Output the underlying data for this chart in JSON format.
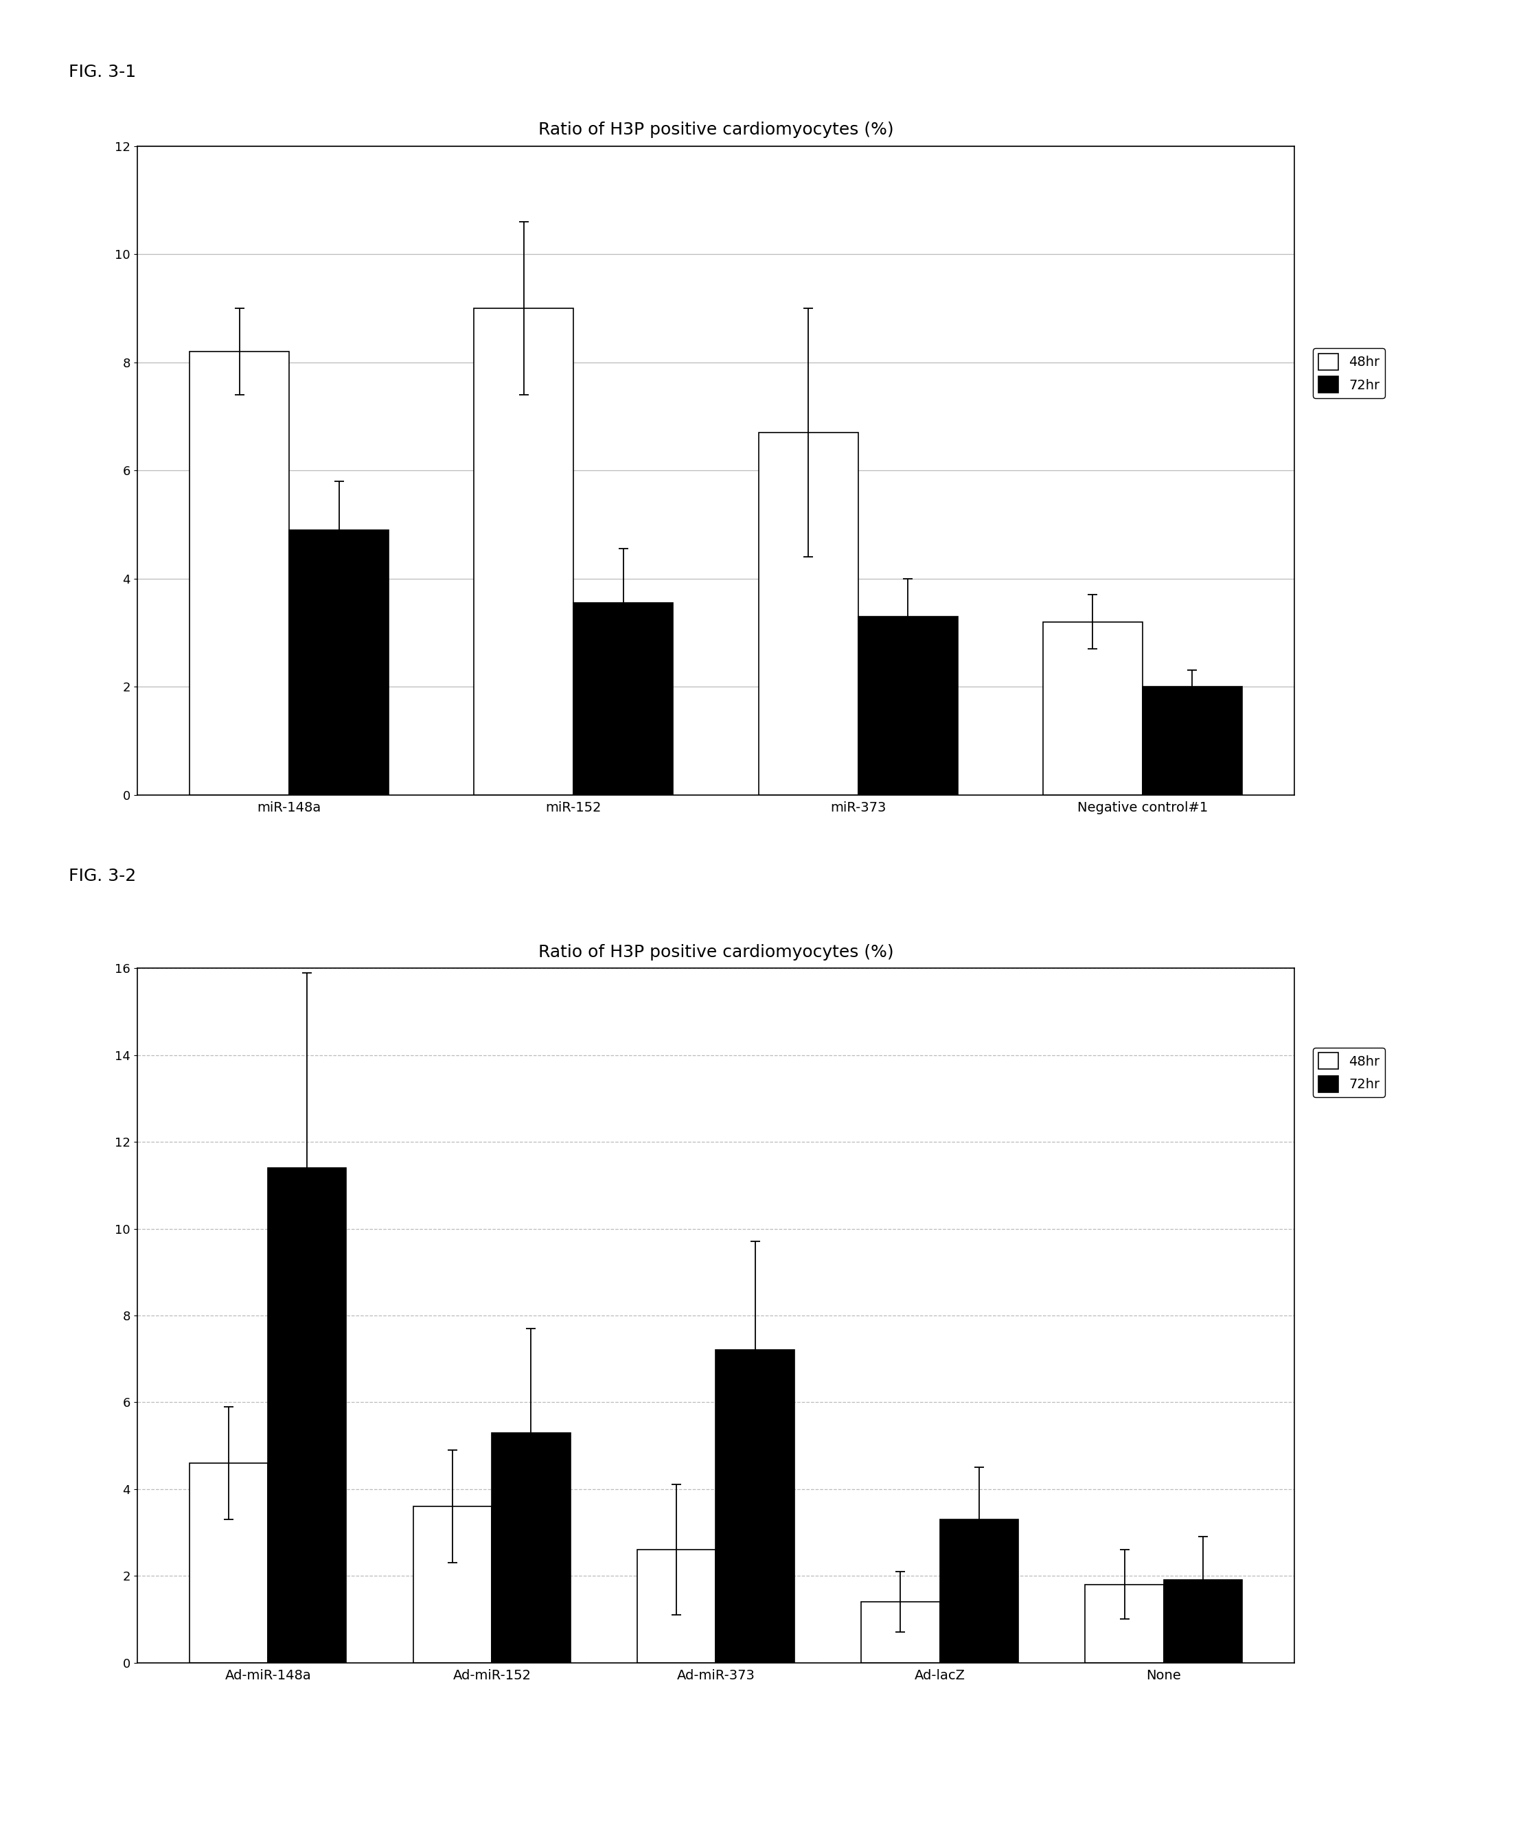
{
  "fig1": {
    "title": "Ratio of H3P positive cardiomyocytes (%)",
    "label": "FIG. 3-1",
    "categories": [
      "miR-148a",
      "miR-152",
      "miR-373",
      "Negative control#1"
    ],
    "values_48hr": [
      8.2,
      9.0,
      6.7,
      3.2
    ],
    "values_72hr": [
      4.9,
      3.55,
      3.3,
      2.0
    ],
    "err_48hr": [
      0.8,
      1.6,
      2.3,
      0.5
    ],
    "err_72hr": [
      0.9,
      1.0,
      0.7,
      0.3
    ],
    "ylim": [
      0,
      12
    ],
    "yticks": [
      0,
      2,
      4,
      6,
      8,
      10,
      12
    ],
    "grid_style": "solid"
  },
  "fig2": {
    "title": "Ratio of H3P positive cardiomyocytes (%)",
    "label": "FIG. 3-2",
    "categories": [
      "Ad-miR-148a",
      "Ad-miR-152",
      "Ad-miR-373",
      "Ad-lacZ",
      "None"
    ],
    "values_48hr": [
      4.6,
      3.6,
      2.6,
      1.4,
      1.8
    ],
    "values_72hr": [
      11.4,
      5.3,
      7.2,
      3.3,
      1.9
    ],
    "err_48hr": [
      1.3,
      1.3,
      1.5,
      0.7,
      0.8
    ],
    "err_72hr": [
      4.5,
      2.4,
      2.5,
      1.2,
      1.0
    ],
    "ylim": [
      0,
      16
    ],
    "yticks": [
      0,
      2,
      4,
      6,
      8,
      10,
      12,
      14,
      16
    ],
    "grid_style": "dashed"
  },
  "bar_width": 0.35,
  "color_48hr": "#ffffff",
  "color_72hr": "#000000",
  "edge_color": "#000000",
  "legend_labels": [
    "48hr",
    "72hr"
  ],
  "background_color": "#ffffff",
  "title_fontsize": 18,
  "label_fontsize": 14,
  "tick_fontsize": 13,
  "fig_label_fontsize": 18
}
